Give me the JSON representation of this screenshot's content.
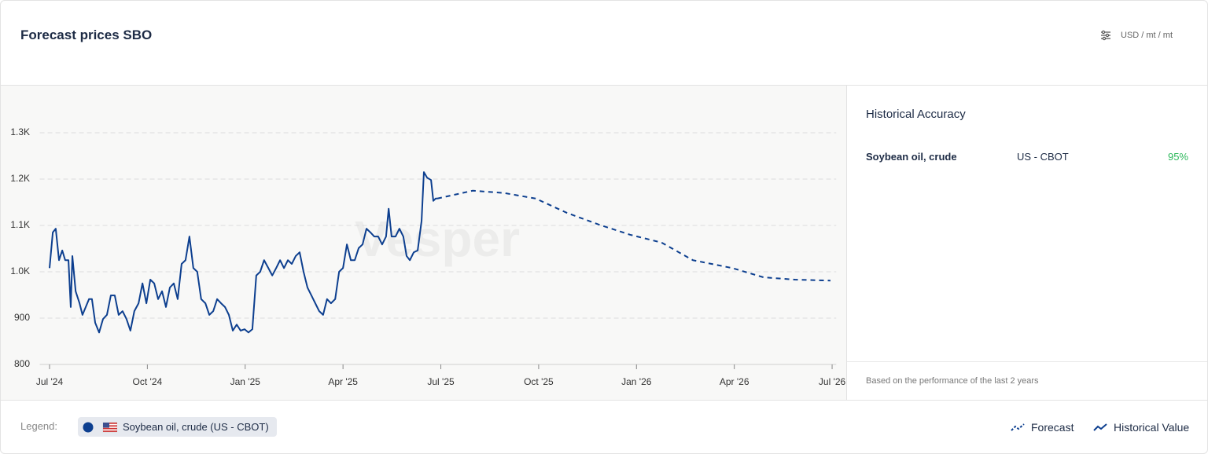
{
  "header": {
    "title": "Forecast prices SBO",
    "unit": "USD / mt / mt"
  },
  "chart_data": {
    "type": "line",
    "watermark": "Vesper",
    "xlim": [
      -0.3,
      24.1
    ],
    "xticks": [
      {
        "value": 0,
        "label": "Jul '24"
      },
      {
        "value": 3,
        "label": "Oct '24"
      },
      {
        "value": 6,
        "label": "Jan '25"
      },
      {
        "value": 9,
        "label": "Apr '25"
      },
      {
        "value": 12,
        "label": "Jul '25"
      },
      {
        "value": 15,
        "label": "Oct '25"
      },
      {
        "value": 18,
        "label": "Jan '26"
      },
      {
        "value": 21,
        "label": "Apr '26"
      },
      {
        "value": 24,
        "label": "Jul '26"
      }
    ],
    "ylim": [
      800,
      1300
    ],
    "yticks": [
      800,
      900,
      {
        "value": 1000,
        "label": "1.0K"
      },
      {
        "value": 1100,
        "label": "1.1K"
      },
      {
        "value": 1200,
        "label": "1.2K"
      },
      {
        "value": 1300,
        "label": "1.3K"
      }
    ],
    "grid": true,
    "series": [
      {
        "name": "Historical Value",
        "color": "#0d3f8f",
        "style": "solid",
        "x": [
          0,
          0.1,
          0.19,
          0.29,
          0.39,
          0.48,
          0.58,
          0.65,
          0.7,
          0.8,
          0.92,
          1.01,
          1.11,
          1.21,
          1.3,
          1.4,
          1.52,
          1.64,
          1.76,
          1.88,
          2.0,
          2.12,
          2.24,
          2.36,
          2.48,
          2.6,
          2.73,
          2.85,
          2.97,
          3.09,
          3.21,
          3.33,
          3.45,
          3.57,
          3.69,
          3.81,
          3.93,
          4.05,
          4.17,
          4.29,
          4.41,
          4.53,
          4.65,
          4.78,
          4.9,
          5.02,
          5.14,
          5.26,
          5.38,
          5.5,
          5.62,
          5.74,
          5.86,
          5.98,
          6.1,
          6.22,
          6.34,
          6.46,
          6.58,
          6.71,
          6.83,
          6.95,
          7.07,
          7.19,
          7.31,
          7.43,
          7.55,
          7.67,
          7.79,
          7.91,
          8.03,
          8.15,
          8.27,
          8.39,
          8.51,
          8.63,
          8.76,
          8.88,
          9.0,
          9.12,
          9.24,
          9.36,
          9.48,
          9.6,
          9.72,
          9.84,
          9.96,
          10.08,
          10.2,
          10.32,
          10.4,
          10.49,
          10.61,
          10.73,
          10.85,
          10.95,
          11.05,
          11.17,
          11.29,
          11.41,
          11.48,
          11.58,
          11.7,
          11.77,
          11.84,
          11.89
        ],
        "values": [
          1008,
          1085,
          1093,
          1025,
          1046,
          1025,
          1025,
          924,
          1034,
          958,
          932,
          907,
          924,
          941,
          941,
          890,
          869,
          898,
          907,
          949,
          949,
          907,
          915,
          898,
          873,
          915,
          932,
          975,
          932,
          983,
          975,
          941,
          958,
          924,
          966,
          975,
          941,
          1017,
          1025,
          1076,
          1008,
          1000,
          941,
          932,
          907,
          915,
          941,
          932,
          924,
          907,
          873,
          886,
          873,
          876,
          869,
          876,
          992,
          1000,
          1025,
          1008,
          992,
          1008,
          1025,
          1008,
          1025,
          1017,
          1034,
          1042,
          1000,
          966,
          949,
          932,
          915,
          907,
          941,
          932,
          941,
          1000,
          1008,
          1059,
          1025,
          1025,
          1051,
          1059,
          1093,
          1085,
          1076,
          1076,
          1059,
          1076,
          1136,
          1076,
          1076,
          1093,
          1076,
          1034,
          1025,
          1042,
          1046,
          1110,
          1215,
          1203,
          1198,
          1153,
          1158,
          1158
        ]
      },
      {
        "name": "Forecast",
        "color": "#0d3f8f",
        "style": "dashed",
        "x": [
          11.89,
          12.98,
          13.94,
          14.91,
          15.87,
          16.84,
          17.8,
          18.77,
          19.73,
          20.94,
          21.9,
          22.86,
          23.95
        ],
        "values": [
          1158,
          1175,
          1170,
          1158,
          1127,
          1102,
          1080,
          1063,
          1025,
          1008,
          988,
          983,
          981
        ]
      }
    ]
  },
  "accuracy": {
    "title": "Historical Accuracy",
    "rows": [
      [
        "Soybean oil, crude",
        "US - CBOT",
        "95%"
      ]
    ],
    "note": "Based on the performance of the last 2 years"
  },
  "legend": {
    "label": "Legend:",
    "item": "Soybean oil, crude (US - CBOT)"
  }
}
